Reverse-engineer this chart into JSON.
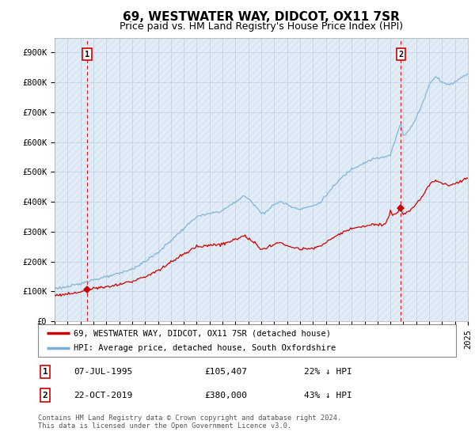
{
  "title": "69, WESTWATER WAY, DIDCOT, OX11 7SR",
  "subtitle": "Price paid vs. HM Land Registry's House Price Index (HPI)",
  "ylim": [
    0,
    950000
  ],
  "yticks": [
    0,
    100000,
    200000,
    300000,
    400000,
    500000,
    600000,
    700000,
    800000,
    900000
  ],
  "ytick_labels": [
    "£0",
    "£100K",
    "£200K",
    "£300K",
    "£400K",
    "£500K",
    "£600K",
    "£700K",
    "£800K",
    "£900K"
  ],
  "hpi_color": "#7aaed4",
  "price_color": "#cc0000",
  "marker_color": "#cc0000",
  "dashed_line_color": "#cc0000",
  "plot_bg_color": "#dce9f5",
  "transaction1": {
    "date_label": "07-JUL-1995",
    "price": 105407,
    "year": 1995.52,
    "label": "1",
    "note": "22% ↓ HPI"
  },
  "transaction2": {
    "date_label": "22-OCT-2019",
    "price": 380000,
    "year": 2019.81,
    "label": "2",
    "note": "43% ↓ HPI"
  },
  "legend_address": "69, WESTWATER WAY, DIDCOT, OX11 7SR (detached house)",
  "legend_hpi": "HPI: Average price, detached house, South Oxfordshire",
  "footer": "Contains HM Land Registry data © Crown copyright and database right 2024.\nThis data is licensed under the Open Government Licence v3.0.",
  "background_color": "#ffffff",
  "grid_color": "#b0c4d8",
  "title_fontsize": 11,
  "subtitle_fontsize": 9,
  "axis_fontsize": 7.5
}
